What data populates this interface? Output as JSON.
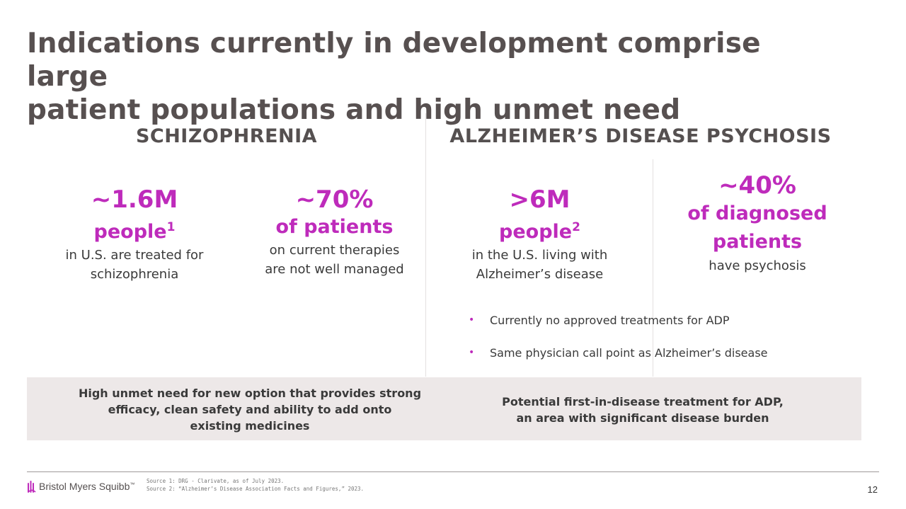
{
  "slide": {
    "title_line1": "Indications currently in development comprise large",
    "title_line2": "patient populations and high unmet need",
    "page_number": "12"
  },
  "schizophrenia": {
    "heading": "SCHIZOPHRENIA",
    "stats": [
      {
        "big": "~1.6M",
        "sub": "people",
        "sup": "1",
        "desc_line1": "in U.S. are treated for",
        "desc_line2": "schizophrenia"
      },
      {
        "big": "~70%",
        "sub": "of patients",
        "desc_line1": "on current therapies",
        "desc_line2": "are not well managed"
      }
    ],
    "band_text_line1": "High unmet need for new option that provides strong",
    "band_text_line2": "efficacy, clean safety and ability to add onto",
    "band_text_line3": "existing medicines"
  },
  "adp": {
    "heading": "ALZHEIMER’S DISEASE PSYCHOSIS",
    "stats": [
      {
        "big": ">6M",
        "sub": "people",
        "sup": "2",
        "desc_line1": "in the U.S. living with",
        "desc_line2": "Alzheimer’s disease"
      },
      {
        "big": "~40%",
        "sub_line1": "of diagnosed",
        "sub_line2": "patients",
        "desc_line1": "have psychosis"
      }
    ],
    "bullets": [
      "Currently no approved treatments for ADP",
      "Same physician call point as Alzheimer’s disease"
    ],
    "bullet_marker": "•",
    "band_text_line1": "Potential first-in-disease treatment for ADP,",
    "band_text_line2": "an area with significant disease burden"
  },
  "footer": {
    "logo_text": "Bristol Myers Squibb",
    "logo_tm": "™",
    "source1": "Source 1: DRG - Clarivate, as of July 2023.",
    "source2": "Source 2: “Alzheimer’s Disease Association Facts and Figures,” 2023."
  },
  "colors": {
    "accent": "#be2bbb",
    "title": "#575050",
    "band": "#ede8e8"
  }
}
